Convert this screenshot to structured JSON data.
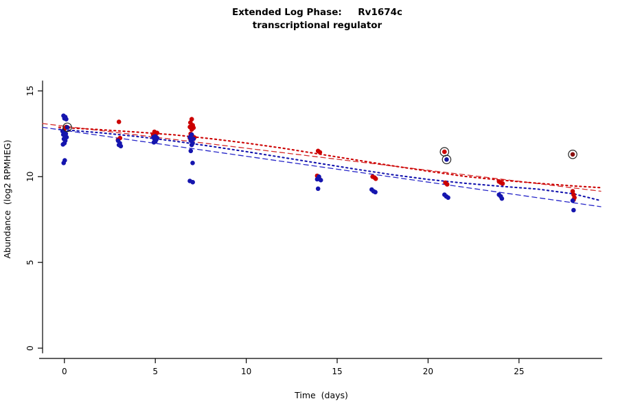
{
  "chart_data": {
    "type": "scatter",
    "title": "Extended Log Phase:     Rv1674c",
    "subtitle": "transcriptional regulator",
    "xlabel": "Time  (days)",
    "ylabel": "Abundance  (log2 RPMHEG)",
    "xlim": [
      -1.2,
      29.5
    ],
    "ylim": [
      -0.6,
      18.1
    ],
    "x_ticks": [
      0,
      5,
      10,
      15,
      20,
      25
    ],
    "y_ticks": [
      0,
      5,
      10,
      15
    ],
    "grid": false,
    "legend": "none",
    "colors": {
      "red": "#CC0000",
      "blue": "#1515AE",
      "ring": "#222222",
      "axis": "#000000"
    },
    "series": [
      {
        "name": "red-points",
        "type": "points",
        "color": "#CC0000",
        "points": [
          [
            0.1,
            12.9
          ],
          [
            0.03,
            12.82
          ],
          [
            -0.05,
            12.7
          ],
          [
            3.0,
            13.2
          ],
          [
            3.06,
            12.25
          ],
          [
            2.95,
            12.15
          ],
          [
            4.95,
            12.62
          ],
          [
            5.1,
            12.55
          ],
          [
            5.0,
            12.5
          ],
          [
            4.88,
            12.45
          ],
          [
            5.05,
            12.3
          ],
          [
            7.0,
            13.35
          ],
          [
            6.93,
            13.15
          ],
          [
            7.06,
            13.0
          ],
          [
            6.9,
            12.9
          ],
          [
            7.1,
            12.85
          ],
          [
            7.0,
            12.75
          ],
          [
            6.94,
            12.5
          ],
          [
            7.05,
            12.35
          ],
          [
            6.9,
            12.25
          ],
          [
            7.1,
            12.2
          ],
          [
            7.15,
            12.28
          ],
          [
            13.95,
            11.5
          ],
          [
            14.05,
            11.42
          ],
          [
            13.9,
            10.05
          ],
          [
            14.0,
            9.95
          ],
          [
            16.95,
            10.0
          ],
          [
            17.05,
            9.95
          ],
          [
            17.12,
            9.88
          ],
          [
            20.95,
            9.65
          ],
          [
            21.05,
            9.55
          ],
          [
            23.9,
            9.72
          ],
          [
            24.0,
            9.65
          ],
          [
            24.1,
            9.6
          ],
          [
            27.95,
            9.15
          ],
          [
            28.0,
            8.95
          ],
          [
            28.05,
            8.78
          ],
          [
            28.0,
            8.65
          ]
        ]
      },
      {
        "name": "blue-points",
        "type": "points",
        "color": "#1515AE",
        "points": [
          [
            -0.05,
            13.55
          ],
          [
            0.05,
            13.48
          ],
          [
            0.0,
            13.4
          ],
          [
            0.1,
            13.35
          ],
          [
            -0.1,
            12.65
          ],
          [
            0.0,
            12.58
          ],
          [
            0.08,
            12.5
          ],
          [
            -0.06,
            12.45
          ],
          [
            0.02,
            12.4
          ],
          [
            0.12,
            12.3
          ],
          [
            -0.03,
            12.2
          ],
          [
            0.05,
            12.1
          ],
          [
            0.0,
            11.95
          ],
          [
            -0.08,
            11.88
          ],
          [
            0.02,
            10.95
          ],
          [
            -0.04,
            10.8
          ],
          [
            2.95,
            12.1
          ],
          [
            3.05,
            11.95
          ],
          [
            3.0,
            11.85
          ],
          [
            3.1,
            11.78
          ],
          [
            5.0,
            12.35
          ],
          [
            4.9,
            12.3
          ],
          [
            5.1,
            12.25
          ],
          [
            4.95,
            12.2
          ],
          [
            5.05,
            12.15
          ],
          [
            5.0,
            12.05
          ],
          [
            4.92,
            12.0
          ],
          [
            7.0,
            12.45
          ],
          [
            6.9,
            12.3
          ],
          [
            7.1,
            12.2
          ],
          [
            6.95,
            12.1
          ],
          [
            7.05,
            11.95
          ],
          [
            7.0,
            11.85
          ],
          [
            6.95,
            11.5
          ],
          [
            7.05,
            10.8
          ],
          [
            6.9,
            9.75
          ],
          [
            7.06,
            9.68
          ],
          [
            14.0,
            10.0
          ],
          [
            13.9,
            9.85
          ],
          [
            14.1,
            9.8
          ],
          [
            13.95,
            9.3
          ],
          [
            16.9,
            9.25
          ],
          [
            17.0,
            9.15
          ],
          [
            17.1,
            9.1
          ],
          [
            20.9,
            8.95
          ],
          [
            21.0,
            8.85
          ],
          [
            21.1,
            8.78
          ],
          [
            23.9,
            8.95
          ],
          [
            24.0,
            8.85
          ],
          [
            24.06,
            8.72
          ],
          [
            27.95,
            8.6
          ],
          [
            28.0,
            8.05
          ]
        ]
      },
      {
        "name": "circled-outlier-points",
        "type": "points-circled",
        "ring_color": "#222222",
        "points": [
          {
            "x": 0.16,
            "y": 12.88,
            "color": "#15159E"
          },
          {
            "x": 20.9,
            "y": 11.45,
            "color": "#CC0000"
          },
          {
            "x": 21.02,
            "y": 11.0,
            "color": "#15159E"
          },
          {
            "x": 27.95,
            "y": 11.3,
            "color": "#8B1010"
          }
        ]
      },
      {
        "name": "red-linear-fit",
        "type": "line",
        "style": "dashed",
        "color": "#D42A2A",
        "points": [
          [
            -1.2,
            13.1
          ],
          [
            29.5,
            9.15
          ]
        ]
      },
      {
        "name": "blue-linear-fit",
        "type": "line",
        "style": "dashed",
        "color": "#2424C8",
        "points": [
          [
            -1.2,
            12.88
          ],
          [
            29.5,
            8.25
          ]
        ]
      },
      {
        "name": "red-lowess-fit",
        "type": "line",
        "style": "dotted",
        "color": "#CC0000",
        "points": [
          [
            -0.3,
            12.88
          ],
          [
            2,
            12.74
          ],
          [
            4,
            12.6
          ],
          [
            6,
            12.44
          ],
          [
            8,
            12.22
          ],
          [
            10,
            11.96
          ],
          [
            12,
            11.66
          ],
          [
            14,
            11.32
          ],
          [
            16,
            10.98
          ],
          [
            18,
            10.64
          ],
          [
            20,
            10.32
          ],
          [
            22,
            10.02
          ],
          [
            24,
            9.8
          ],
          [
            26,
            9.62
          ],
          [
            28,
            9.46
          ],
          [
            29.5,
            9.36
          ]
        ]
      },
      {
        "name": "blue-lowess-fit",
        "type": "line",
        "style": "dotted",
        "color": "#1515AE",
        "points": [
          [
            -0.3,
            12.76
          ],
          [
            2,
            12.56
          ],
          [
            4,
            12.34
          ],
          [
            6,
            12.08
          ],
          [
            8,
            11.78
          ],
          [
            10,
            11.46
          ],
          [
            12,
            11.12
          ],
          [
            14,
            10.78
          ],
          [
            16,
            10.44
          ],
          [
            18,
            10.12
          ],
          [
            20,
            9.84
          ],
          [
            22,
            9.62
          ],
          [
            24,
            9.44
          ],
          [
            26,
            9.28
          ],
          [
            28,
            9.0
          ],
          [
            29.5,
            8.6
          ]
        ]
      }
    ]
  }
}
